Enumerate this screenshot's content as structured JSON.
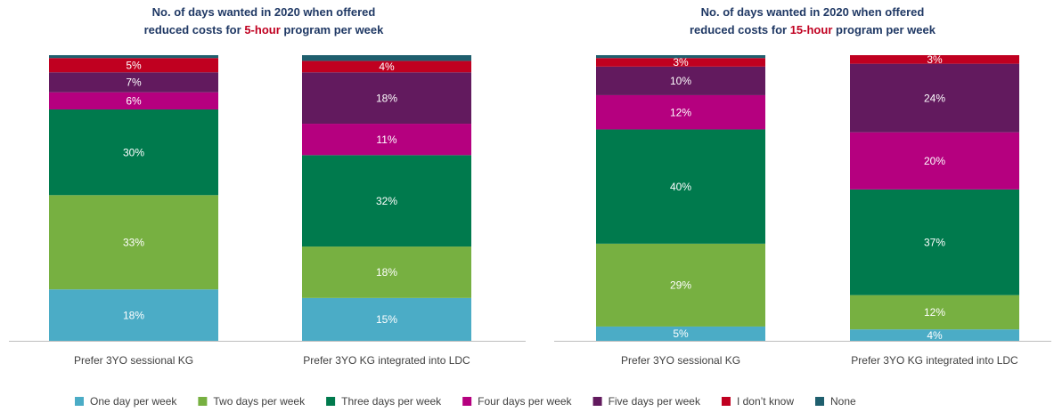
{
  "chart_data": [
    {
      "type": "stacked_bar",
      "title": {
        "line1": "No. of days wanted in 2020 when offered",
        "before": "reduced costs for",
        "highlight": "5-hour",
        "after": "program per week"
      },
      "categories": [
        "Prefer 3YO sessional KG",
        "Prefer 3YO KG integrated into LDC"
      ],
      "ylim": [
        0,
        100
      ],
      "series": [
        {
          "name": "One day per week",
          "color": "#4bacc6",
          "values": [
            18,
            15
          ],
          "value_labels": [
            "18%",
            "15%"
          ]
        },
        {
          "name": "Two days per week",
          "color": "#77b041",
          "values": [
            33,
            18
          ],
          "value_labels": [
            "33%",
            "18%"
          ]
        },
        {
          "name": "Three days per week",
          "color": "#007a4d",
          "values": [
            30,
            32
          ],
          "value_labels": [
            "30%",
            "32%"
          ]
        },
        {
          "name": "Four days per week",
          "color": "#b5007f",
          "values": [
            6,
            11
          ],
          "value_labels": [
            "6%",
            "11%"
          ]
        },
        {
          "name": "Five days per week",
          "color": "#621a5e",
          "values": [
            7,
            18
          ],
          "value_labels": [
            "7%",
            "18%"
          ]
        },
        {
          "name": "I don’t know",
          "color": "#c00020",
          "values": [
            5,
            4
          ],
          "value_labels": [
            "5%",
            "4%"
          ]
        },
        {
          "name": "None",
          "color": "#1f5f6e",
          "values": [
            1,
            2
          ]
        }
      ]
    },
    {
      "type": "stacked_bar",
      "title": {
        "line1": "No. of days wanted in 2020 when offered",
        "before": "reduced costs for",
        "highlight": "15-hour",
        "after": "program per week"
      },
      "categories": [
        "Prefer 3YO sessional KG",
        "Prefer 3YO KG integrated into LDC"
      ],
      "ylim": [
        0,
        100
      ],
      "series": [
        {
          "name": "One day per week",
          "color": "#4bacc6",
          "values": [
            5,
            4
          ],
          "value_labels": [
            "5%",
            "4%"
          ]
        },
        {
          "name": "Two days per week",
          "color": "#77b041",
          "values": [
            29,
            12
          ],
          "value_labels": [
            "29%",
            "12%"
          ]
        },
        {
          "name": "Three days per week",
          "color": "#007a4d",
          "values": [
            40,
            37
          ],
          "value_labels": [
            "40%",
            "37%"
          ]
        },
        {
          "name": "Four days per week",
          "color": "#b5007f",
          "values": [
            12,
            20
          ],
          "value_labels": [
            "12%",
            "20%"
          ]
        },
        {
          "name": "Five days per week",
          "color": "#621a5e",
          "values": [
            10,
            24
          ],
          "value_labels": [
            "10%",
            "24%"
          ]
        },
        {
          "name": "I don’t know",
          "color": "#c00020",
          "values": [
            3,
            3
          ],
          "value_labels": [
            "3%",
            "3%"
          ]
        },
        {
          "name": "None",
          "color": "#1f5f6e",
          "values": [
            1,
            0
          ]
        }
      ]
    }
  ]
}
